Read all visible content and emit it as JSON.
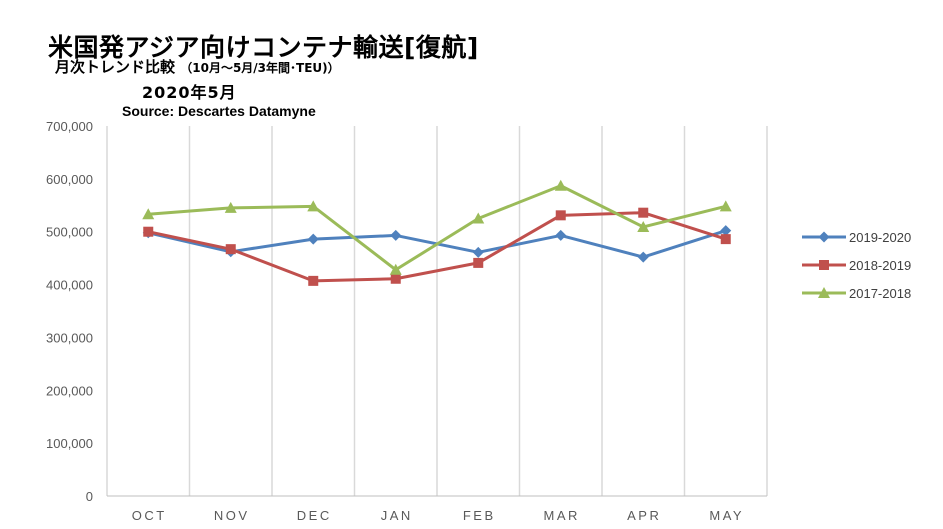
{
  "chart_data": {
    "type": "line",
    "title": "米国発アジア向けコンテナ輸送[復航]",
    "subtitle_main": "月次トレンド比較",
    "subtitle_note": "（10月～5月/3年間･TEU)）",
    "date_label": "2020年5月",
    "source": "Source:  Descartes Datamyne",
    "categories": [
      "OCT",
      "NOV",
      "DEC",
      "JAN",
      "FEB",
      "MAR",
      "APR",
      "MAY"
    ],
    "ylim": [
      0,
      700000
    ],
    "yticks": [
      {
        "value": 0,
        "label": "0"
      },
      {
        "value": 100000,
        "label": "100,000"
      },
      {
        "value": 200000,
        "label": "200,000"
      },
      {
        "value": 300000,
        "label": "300,000"
      },
      {
        "value": 400000,
        "label": "400,000"
      },
      {
        "value": 500000,
        "label": "500,000"
      },
      {
        "value": 600000,
        "label": "600,000"
      },
      {
        "value": 700000,
        "label": "700,000"
      }
    ],
    "grid": "vertical",
    "legend_position": "right",
    "series": [
      {
        "name": "2019-2020",
        "color": "#4F81BD",
        "marker": "diamond",
        "values": [
          498000,
          462000,
          486000,
          493000,
          461000,
          493000,
          452000,
          502000
        ]
      },
      {
        "name": "2018-2019",
        "color": "#C0504D",
        "marker": "square",
        "values": [
          500000,
          467000,
          407000,
          411000,
          441000,
          531000,
          536000,
          486000
        ]
      },
      {
        "name": "2017-2018",
        "color": "#9BBB59",
        "marker": "triangle",
        "values": [
          533000,
          545000,
          548000,
          428000,
          525000,
          587000,
          509000,
          548000
        ]
      }
    ]
  }
}
